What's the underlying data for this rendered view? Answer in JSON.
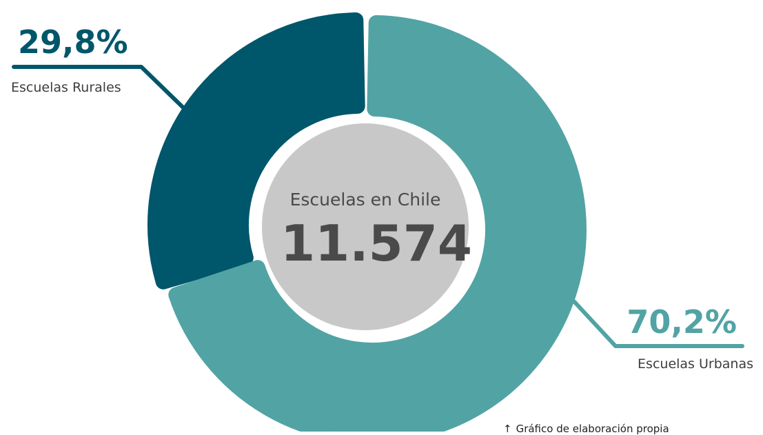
{
  "chart_data": {
    "type": "pie",
    "variant": "donut",
    "categories": [
      "Escuelas Rurales",
      "Escuelas Urbanas"
    ],
    "values": [
      29.8,
      70.2
    ],
    "value_labels": [
      "29,8%",
      "70,2%"
    ],
    "center_caption": "Escuelas en Chile",
    "center_total": "11.574",
    "colors": {
      "rurales": "#00566a",
      "urbanas": "#52a3a4",
      "center_disc": "#c8c8c8",
      "center_text": "#4a4a4a"
    }
  },
  "footnote": {
    "icon": "arrow-up-icon",
    "text": "Gráfico de elaboración propia"
  }
}
